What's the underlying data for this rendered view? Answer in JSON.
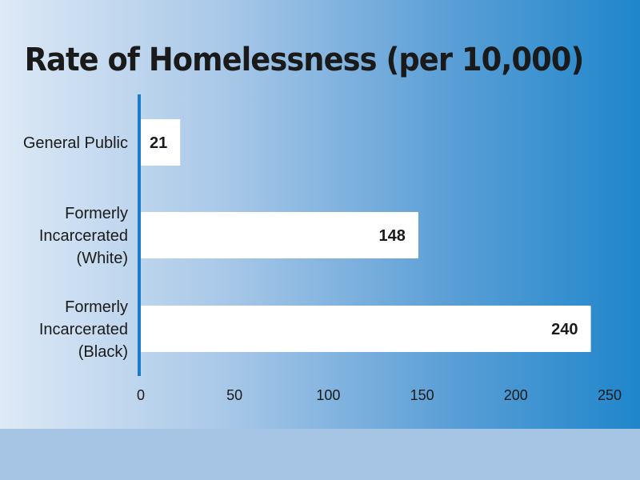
{
  "chart_data": {
    "type": "bar",
    "orientation": "horizontal",
    "title": "Rate of Homelessness (per 10,000)",
    "categories": [
      [
        "General Public"
      ],
      [
        "Formerly",
        "Incarcerated",
        "(White)"
      ],
      [
        "Formerly",
        "Incarcerated",
        "(Black)"
      ]
    ],
    "values": [
      21,
      148,
      240
    ],
    "value_labels": [
      "21",
      "148",
      "240"
    ],
    "xlim": [
      0,
      250
    ],
    "xticks": [
      0,
      50,
      100,
      150,
      200,
      250
    ],
    "grid": false,
    "legend": "none",
    "colors": {
      "bar": "#ffffff",
      "axis": "#1a7cc8",
      "text": "#1a1a1a",
      "footer": "#a6c4e4"
    }
  }
}
